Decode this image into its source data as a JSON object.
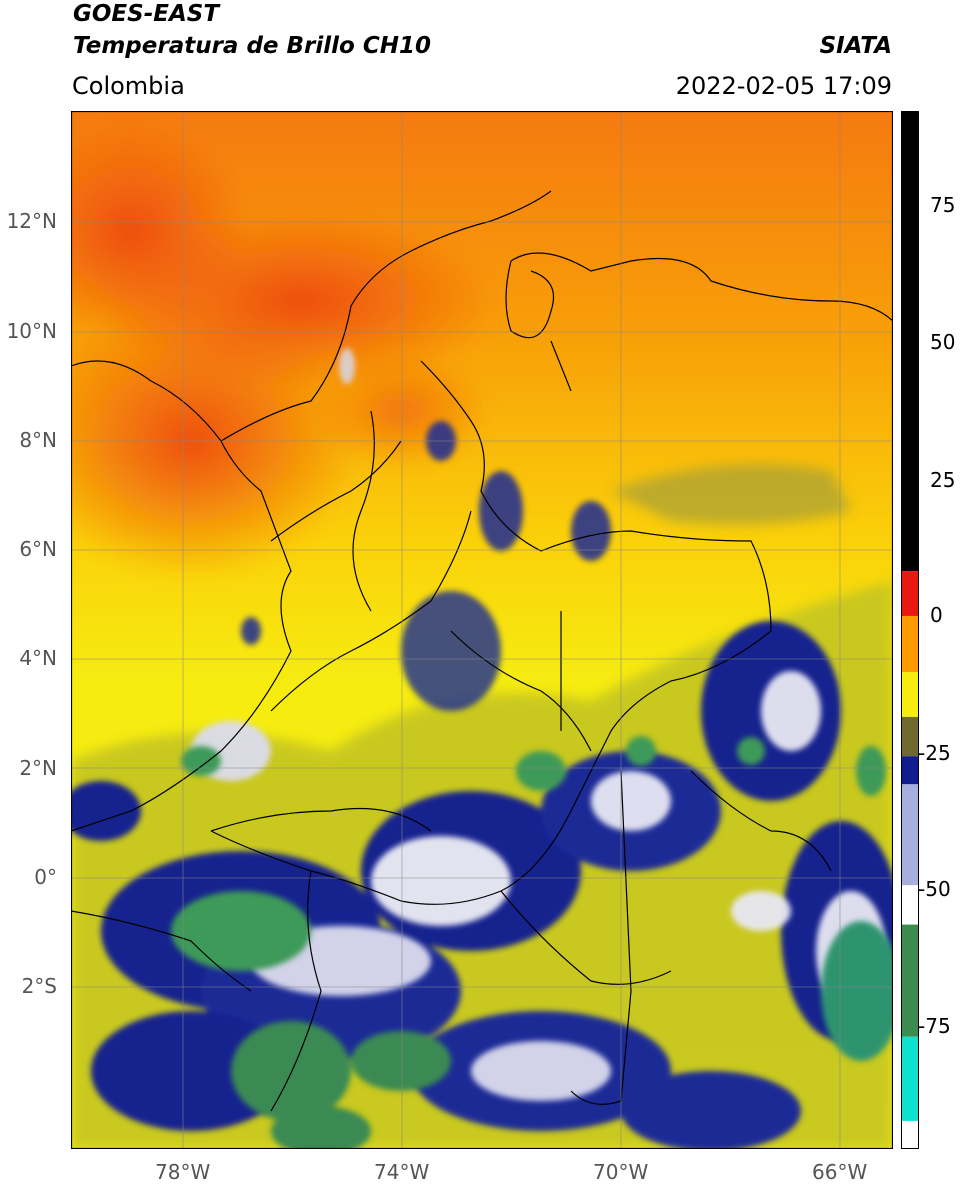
{
  "header": {
    "satellite": "GOES-EAST",
    "product": "Temperatura de Brillo CH10",
    "region": "Colombia",
    "source": "SIATA",
    "datetime": "2022-02-05 17:09"
  },
  "map": {
    "lat_ticks": [
      "12°N",
      "10°N",
      "8°N",
      "6°N",
      "4°N",
      "2°N",
      "0°",
      "2°S"
    ],
    "lon_ticks": [
      "78°W",
      "74°W",
      "70°W",
      "66°W"
    ],
    "extent": {
      "lon": [
        -80,
        -65
      ],
      "lat": [
        -5,
        14
      ]
    },
    "grid": true,
    "colors": {
      "warm_north": "#f04a10",
      "mid": "#ff9c00",
      "yellow": "#f5ee10",
      "olive": "#b8b820",
      "navy": "#101e8c",
      "white": "#f4f4f4",
      "green": "#3a9a58"
    }
  },
  "colorbar": {
    "ticks": [
      "75",
      "50",
      "25",
      "0",
      "-25",
      "-50",
      "-75"
    ],
    "range": [
      -95,
      90
    ],
    "segments": [
      {
        "from": 90,
        "to": 8,
        "color": "#000000"
      },
      {
        "from": 8,
        "to": 0,
        "color": "#e81a10"
      },
      {
        "from": 0,
        "to": -10,
        "color": "#ff9a00"
      },
      {
        "from": -10,
        "to": -18,
        "color": "#f6ec10"
      },
      {
        "from": -18,
        "to": -25,
        "color": "#6e6a30"
      },
      {
        "from": -25,
        "to": -30,
        "color": "#101c90"
      },
      {
        "from": -30,
        "to": -48,
        "color": "#a8aede"
      },
      {
        "from": -48,
        "to": -55,
        "color": "#ffffff"
      },
      {
        "from": -55,
        "to": -75,
        "color": "#3c8c50"
      },
      {
        "from": -75,
        "to": -90,
        "color": "#10e0d0"
      },
      {
        "from": -90,
        "to": -95,
        "color": "#ffffff"
      }
    ]
  }
}
